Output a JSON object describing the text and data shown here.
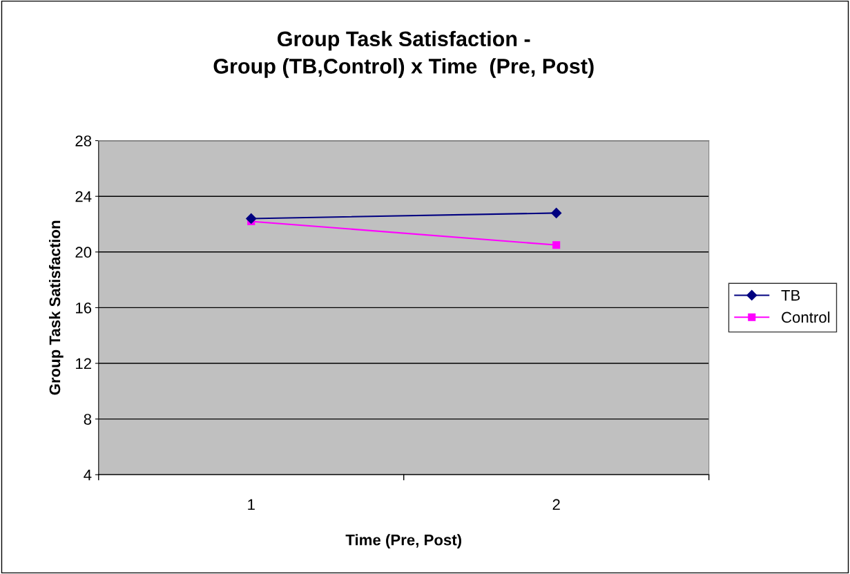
{
  "chart_data": {
    "type": "line",
    "title": "Group Task Satisfaction -\nGroup (TB,Control) x Time  (Pre, Post)",
    "xlabel": "Time (Pre, Post)",
    "ylabel": "Group Task Satisfaction",
    "categories": [
      "1",
      "2"
    ],
    "series": [
      {
        "name": "TB",
        "color": "#000080",
        "values": [
          22.4,
          22.8
        ],
        "marker": "diamond"
      },
      {
        "name": "Control",
        "color": "#ff00ff",
        "values": [
          22.2,
          20.5
        ],
        "marker": "square"
      }
    ],
    "ylim": [
      4,
      28
    ],
    "yticks": [
      4,
      8,
      12,
      16,
      20,
      24,
      28
    ],
    "grid": "y",
    "legend": "right",
    "line_style": "solid"
  }
}
